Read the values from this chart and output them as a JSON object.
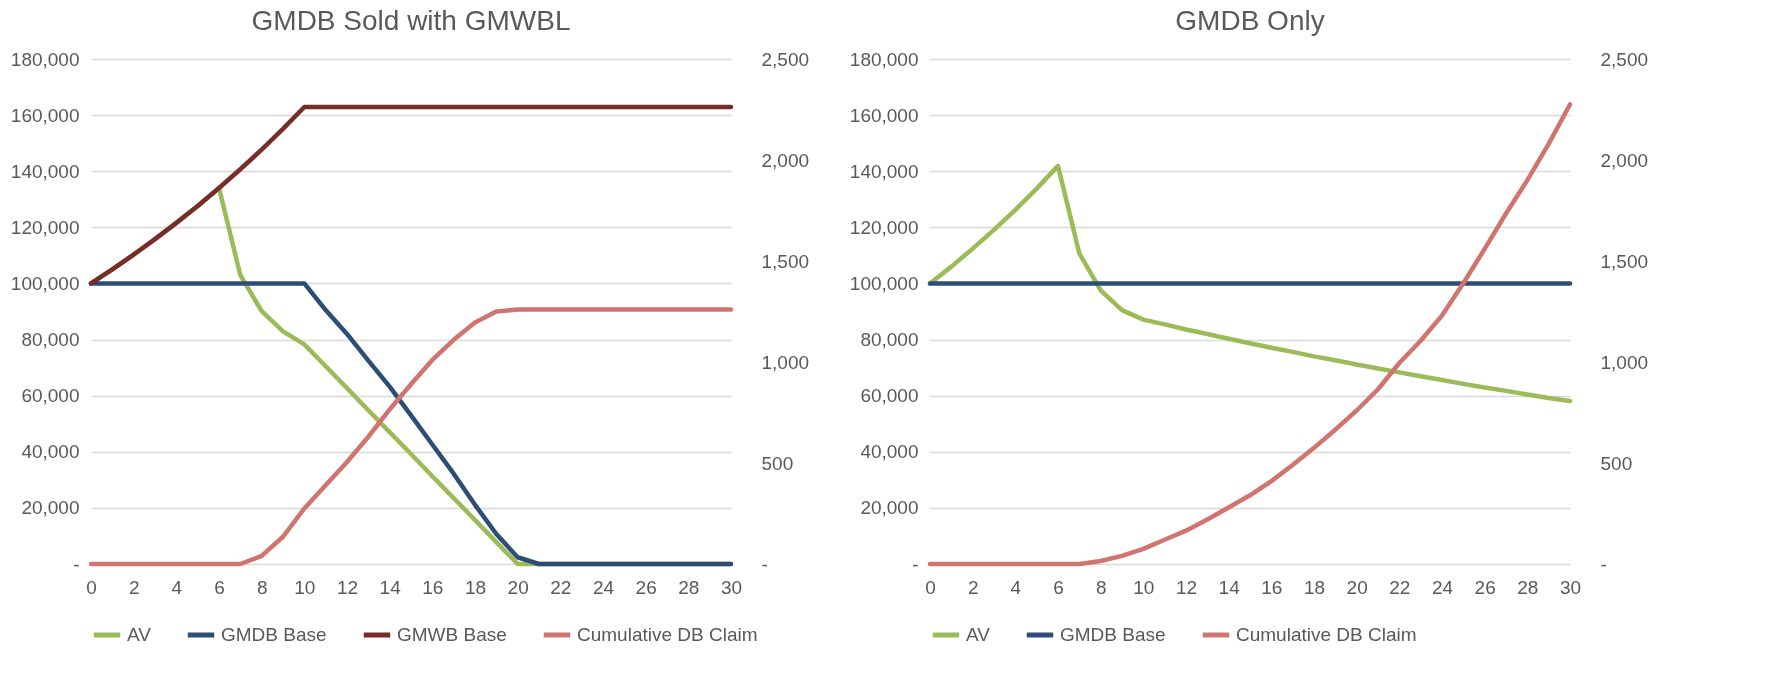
{
  "chart_data": [
    {
      "type": "line",
      "title": "GMDB Sold with GMWBL",
      "x": [
        0,
        1,
        2,
        3,
        4,
        5,
        6,
        7,
        8,
        9,
        10,
        11,
        12,
        13,
        14,
        15,
        16,
        17,
        18,
        19,
        20,
        21,
        22,
        23,
        24,
        25,
        26,
        27,
        28,
        29,
        30
      ],
      "xlim": [
        0,
        30
      ],
      "xticks": [
        0,
        2,
        4,
        6,
        8,
        10,
        12,
        14,
        16,
        18,
        20,
        22,
        24,
        26,
        28,
        30
      ],
      "ylim": [
        0,
        180000
      ],
      "yticks": [
        {
          "value": 0,
          "label": "-"
        },
        {
          "value": 20000,
          "label": "20,000"
        },
        {
          "value": 40000,
          "label": "40,000"
        },
        {
          "value": 60000,
          "label": "60,000"
        },
        {
          "value": 80000,
          "label": "80,000"
        },
        {
          "value": 100000,
          "label": "100,000"
        },
        {
          "value": 120000,
          "label": "120,000"
        },
        {
          "value": 140000,
          "label": "140,000"
        },
        {
          "value": 160000,
          "label": "160,000"
        },
        {
          "value": 180000,
          "label": "180,000"
        }
      ],
      "y2lim": [
        0,
        2500
      ],
      "y2ticks": [
        {
          "value": 0,
          "label": "-"
        },
        500,
        {
          "value": 1000,
          "label": "1,000"
        },
        {
          "value": 1500,
          "label": "1,500"
        },
        {
          "value": 2000,
          "label": "2,000"
        },
        {
          "value": 2500,
          "label": "2,500"
        }
      ],
      "grid": "y",
      "legend": "bottom",
      "series": [
        {
          "name": "AV",
          "color": "#9bbb59",
          "values": [
            100000,
            105000,
            110300,
            115800,
            121600,
            127600,
            134000,
            103000,
            90100,
            82900,
            78300,
            70500,
            62700,
            54800,
            47000,
            39200,
            31300,
            23500,
            15700,
            7800,
            0,
            0,
            0,
            0,
            0,
            0,
            0,
            0,
            0,
            0,
            0
          ]
        },
        {
          "name": "GMDB Base",
          "color": "#2c4d75",
          "values": [
            100000,
            100000,
            100000,
            100000,
            100000,
            100000,
            100000,
            100000,
            100000,
            100000,
            100000,
            90500,
            82000,
            72500,
            63200,
            53000,
            42600,
            32200,
            21100,
            10700,
            2400,
            0,
            0,
            0,
            0,
            0,
            0,
            0,
            0,
            0,
            0
          ]
        },
        {
          "name": "GMWB Base",
          "color": "#772c2a",
          "values": [
            100000,
            105000,
            110300,
            115800,
            121600,
            127600,
            134000,
            140700,
            147700,
            155100,
            162900,
            162900,
            162900,
            162900,
            162900,
            162900,
            162900,
            162900,
            162900,
            162900,
            162900,
            162900,
            162900,
            162900,
            162900,
            162900,
            162900,
            162900,
            162900,
            162900,
            162900
          ]
        },
        {
          "name": "Cumulative DB Claim",
          "color": "#d07470",
          "axis": "y2",
          "values": [
            0,
            0,
            0,
            0,
            0,
            0,
            0,
            0,
            40,
            135,
            275,
            390,
            505,
            630,
            765,
            890,
            1010,
            1110,
            1195,
            1250,
            1260,
            1260,
            1260,
            1260,
            1260,
            1260,
            1260,
            1260,
            1260,
            1260,
            1260
          ]
        }
      ]
    },
    {
      "type": "line",
      "title": "GMDB Only",
      "x": [
        0,
        1,
        2,
        3,
        4,
        5,
        6,
        7,
        8,
        9,
        10,
        11,
        12,
        13,
        14,
        15,
        16,
        17,
        18,
        19,
        20,
        21,
        22,
        23,
        24,
        25,
        26,
        27,
        28,
        29,
        30
      ],
      "xlim": [
        0,
        30
      ],
      "xticks": [
        0,
        2,
        4,
        6,
        8,
        10,
        12,
        14,
        16,
        18,
        20,
        22,
        24,
        26,
        28,
        30
      ],
      "ylim": [
        0,
        180000
      ],
      "yticks": [
        {
          "value": 0,
          "label": "-"
        },
        {
          "value": 20000,
          "label": "20,000"
        },
        {
          "value": 40000,
          "label": "40,000"
        },
        {
          "value": 60000,
          "label": "60,000"
        },
        {
          "value": 80000,
          "label": "80,000"
        },
        {
          "value": 100000,
          "label": "100,000"
        },
        {
          "value": 120000,
          "label": "120,000"
        },
        {
          "value": 140000,
          "label": "140,000"
        },
        {
          "value": 160000,
          "label": "160,000"
        },
        {
          "value": 180000,
          "label": "180,000"
        }
      ],
      "y2lim": [
        0,
        2500
      ],
      "y2ticks": [
        {
          "value": 0,
          "label": "-"
        },
        500,
        {
          "value": 1000,
          "label": "1,000"
        },
        {
          "value": 1500,
          "label": "1,500"
        },
        {
          "value": 2000,
          "label": "2,000"
        },
        {
          "value": 2500,
          "label": "2,500"
        }
      ],
      "grid": "y",
      "legend": "bottom",
      "series": [
        {
          "name": "AV",
          "color": "#9bbb59",
          "values": [
            100000,
            106000,
            112400,
            119100,
            126200,
            133800,
            141900,
            110700,
            97500,
            90500,
            87100,
            85400,
            83600,
            82000,
            80300,
            78700,
            77100,
            75600,
            74000,
            72600,
            71100,
            69700,
            68300,
            66900,
            65600,
            64200,
            62900,
            61700,
            60400,
            59200,
            58100
          ]
        },
        {
          "name": "GMDB Base",
          "color": "#2c4d75",
          "values": [
            100000,
            100000,
            100000,
            100000,
            100000,
            100000,
            100000,
            100000,
            100000,
            100000,
            100000,
            100000,
            100000,
            100000,
            100000,
            100000,
            100000,
            100000,
            100000,
            100000,
            100000,
            100000,
            100000,
            100000,
            100000,
            100000,
            100000,
            100000,
            100000,
            100000,
            100000
          ]
        },
        {
          "name": "Cumulative DB Claim",
          "color": "#d07470",
          "axis": "y2",
          "values": [
            0,
            0,
            0,
            0,
            0,
            0,
            0,
            0,
            15,
            40,
            75,
            120,
            165,
            220,
            280,
            340,
            410,
            490,
            575,
            665,
            760,
            865,
            995,
            1105,
            1230,
            1390,
            1560,
            1735,
            1900,
            2080,
            2275
          ]
        }
      ]
    }
  ]
}
